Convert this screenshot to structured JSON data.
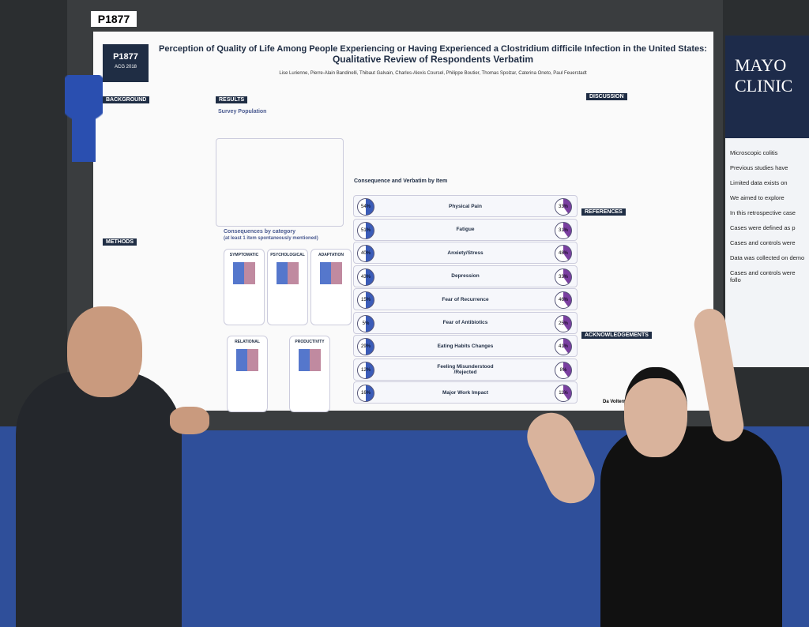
{
  "poster_number": "P1877",
  "poster": {
    "badge": {
      "id": "P1877",
      "conference": "ACG 2018"
    },
    "title_line1": "Perception of Quality of Life Among People Experiencing or Having Experienced a Clostridium difficile Infection in the United States:",
    "title_line2": "Qualitative Review of Respondents Verbatim",
    "authors": "Lise Lurienne, Pierre-Alain Bandinelli, Thibaut Galvain, Charles-Alexis Coursel, Philippe Boutier, Thomas Spolzar, Caterina Oneto, Paul Feuerstadt",
    "sections": {
      "background": "BACKGROUND",
      "results": "RESULTS",
      "discussion": "DISCUSSION",
      "references": "REFERENCES",
      "acknowledgements": "ACKNOWLEDGEMENTS",
      "methods": "METHODS"
    },
    "subheads": {
      "population": "Survey Population",
      "categories": "Consequences by category",
      "categories_note": "(at least 1 item spontaneously mentioned)",
      "verbatim": "Consequence and Verbatim by Item"
    },
    "category_labels": [
      "SYMPTOMATIC",
      "PSYCHOLOGICAL",
      "ADAPTATION",
      "RELATIONAL",
      "PRODUCTIVITY"
    ],
    "items": [
      {
        "label": "Physical Pain",
        "current": "54%",
        "past": "33%"
      },
      {
        "label": "Fatigue",
        "current": "51%",
        "past": "31%"
      },
      {
        "label": "Anxiety/Stress",
        "current": "40%",
        "past": "48%"
      },
      {
        "label": "Depression",
        "current": "43%",
        "past": "33%"
      },
      {
        "label": "Fear of Recurrence",
        "current": "15%",
        "past": "46%"
      },
      {
        "label": "Fear of Antibiotics",
        "current": "5%",
        "past": "25%"
      },
      {
        "label": "Eating Habits Changes",
        "current": "29%",
        "past": "41%"
      },
      {
        "label": "Feeling Misunderstood /Rejected",
        "current": "12%",
        "past": "8%"
      },
      {
        "label": "Major Work Impact",
        "current": "16%",
        "past": "11%"
      }
    ],
    "footer": "Da Volterra (Paris, France)"
  },
  "side_poster": {
    "title": "MAYO CLINIC",
    "bullets": [
      "Microscopic colitis",
      "Previous studies have",
      "Limited data exists on",
      "We aimed to explore",
      "In this retrospective case",
      "Cases were defined as p",
      "Cases and controls were",
      "Data was collected on demo",
      "Cases and controls were follo"
    ]
  }
}
